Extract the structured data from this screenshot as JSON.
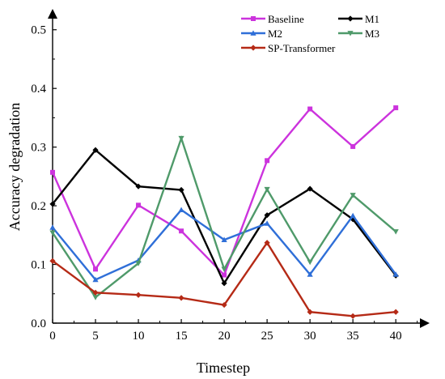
{
  "chart_data": {
    "type": "line",
    "xlabel": "Timestep",
    "ylabel": "Accuracy degradation",
    "x": [
      0,
      5,
      10,
      15,
      20,
      25,
      30,
      35,
      40
    ],
    "xlim": [
      0,
      43
    ],
    "ylim": [
      0,
      0.53
    ],
    "xticks": [
      "0",
      "5",
      "10",
      "15",
      "20",
      "25",
      "30",
      "35",
      "40"
    ],
    "yticks": [
      "0.0",
      "0.1",
      "0.2",
      "0.3",
      "0.4",
      "0.5"
    ],
    "grid": false,
    "legend_position": "top-right",
    "series": [
      {
        "name": "Baseline",
        "color": "#cc33dd",
        "marker": "square",
        "values": [
          0.257,
          0.092,
          0.201,
          0.157,
          0.082,
          0.277,
          0.365,
          0.301,
          0.367
        ]
      },
      {
        "name": "M1",
        "color": "#000000",
        "marker": "diamond",
        "values": [
          0.203,
          0.295,
          0.233,
          0.227,
          0.068,
          0.184,
          0.229,
          0.177,
          0.081
        ]
      },
      {
        "name": "M2",
        "color": "#2f6fd8",
        "marker": "triangle",
        "values": [
          0.163,
          0.074,
          0.107,
          0.193,
          0.142,
          0.17,
          0.083,
          0.183,
          0.083
        ]
      },
      {
        "name": "M3",
        "color": "#4f9a6a",
        "marker": "down-triangle",
        "values": [
          0.154,
          0.044,
          0.102,
          0.315,
          0.092,
          0.228,
          0.104,
          0.218,
          0.156
        ]
      },
      {
        "name": "SP-Transformer",
        "color": "#b52a16",
        "marker": "diamond",
        "values": [
          0.106,
          0.052,
          0.048,
          0.043,
          0.031,
          0.137,
          0.019,
          0.012,
          0.019
        ]
      }
    ]
  }
}
